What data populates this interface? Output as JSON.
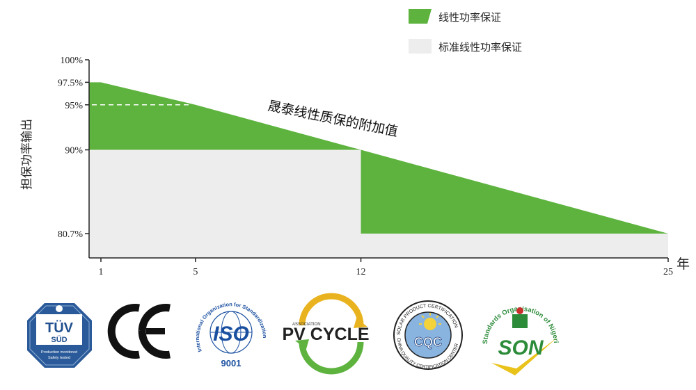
{
  "chart_data": {
    "type": "area",
    "x_ticks": [
      1,
      5,
      12,
      25
    ],
    "x_range": [
      0.5,
      25
    ],
    "y_range": [
      78,
      100
    ],
    "y_ticks": [
      {
        "value": 100,
        "label": "100%"
      },
      {
        "value": 97.5,
        "label": "97.5%"
      },
      {
        "value": 95,
        "label": "95%"
      },
      {
        "value": 90,
        "label": "90%"
      },
      {
        "value": 80.7,
        "label": "80.7%"
      }
    ],
    "xlabel": "年",
    "ylabel": "担保功率输出",
    "series": [
      {
        "name": "线性功率保证",
        "color": "#5db33e",
        "points": [
          [
            0.5,
            97.5
          ],
          [
            1,
            97.5
          ],
          [
            5,
            95
          ],
          [
            12,
            90
          ],
          [
            25,
            80.7
          ]
        ]
      },
      {
        "name": "标准线性功率保证",
        "color": "#eeeded",
        "points": [
          [
            0.5,
            90
          ],
          [
            12,
            90
          ],
          [
            12,
            80.7
          ],
          [
            25,
            80.7
          ]
        ]
      }
    ],
    "reference_line": {
      "value": 95,
      "x_end": 4.8,
      "style": "dashed"
    },
    "annotation": "晟泰线性质保的附加值",
    "legend_position": "top-right"
  },
  "logos": {
    "tuv": {
      "main": "TÜV",
      "sub": "SÜD",
      "small1": "Production monitored",
      "small2": "Safety tested"
    },
    "ce": {
      "text": "CE"
    },
    "iso": {
      "text": "ISO",
      "number": "9001",
      "arc": "International Organization for Standardization"
    },
    "pvcycle": {
      "text": "PV CYCLE",
      "small": "ASSOCIATION"
    },
    "cqc": {
      "text": "CQC",
      "arc_top": "SOLAR PRODUCT CERTIFICATION",
      "arc_bottom": "CHINA QUALITY CERTIFICATION CENTER"
    },
    "son": {
      "text": "SON",
      "arc": "Standards Organisation of Nigeria"
    }
  },
  "colors": {
    "green": "#5db33e",
    "grey": "#eeeded",
    "tuv_blue": "#1f4f8f",
    "iso_blue": "#1a4fa0"
  }
}
